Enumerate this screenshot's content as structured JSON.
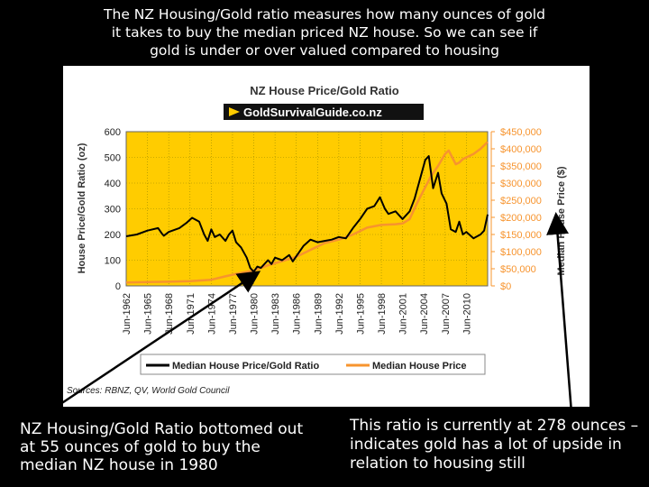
{
  "slide": {
    "intro": "The NZ Housing/Gold ratio measures how many ounces of gold it takes to buy the median priced NZ house. So we can see if gold is under or over valued compared to housing",
    "note_left": "NZ Housing/Gold Ratio bottomed out at 55 ounces of gold to buy the median NZ house in 1980",
    "note_right": "This ratio is currently at 278 ounces – indicates gold has a lot of upside in relation to housing still"
  },
  "chart_data": {
    "type": "line",
    "title": "NZ House Price/Gold Ratio",
    "logo_text": "GoldSurvivalGuide.co.nz",
    "ylabel": "House Price/Gold Ratio (oz)",
    "y2label": "Median House Price ($)",
    "ylim": [
      0,
      600
    ],
    "y2lim": [
      0,
      450000
    ],
    "y_ticks": [
      "0",
      "100",
      "200",
      "300",
      "400",
      "500",
      "600"
    ],
    "y2_ticks": [
      "$0",
      "$50,000",
      "$100,000",
      "$150,000",
      "$200,000",
      "$250,000",
      "$300,000",
      "$350,000",
      "$400,000",
      "$450,000"
    ],
    "x_ticks": [
      "Jun-1962",
      "Jun-1965",
      "Jun-1968",
      "Jun-1971",
      "Jun-1974",
      "Jun-1977",
      "Jun-1980",
      "Jun-1983",
      "Jun-1986",
      "Jun-1989",
      "Jun-1992",
      "Jun-1995",
      "Jun-1998",
      "Jun-2001",
      "Jun-2004",
      "Jun-2007",
      "Jun-2010"
    ],
    "xlim": [
      1962.0,
      2013.0
    ],
    "grid": true,
    "legend_position": "bottom",
    "sources": "Sources: RBNZ, QV, World Gold Council",
    "colors": {
      "plot_background": "#FFCC00",
      "ratio": "#000000",
      "price": "#F7942E",
      "secondary_axis": "#F7942E"
    },
    "series": [
      {
        "name": "Median House Price/Gold Ratio",
        "axis": "left",
        "x": [
          1962.0,
          1963.5,
          1965.0,
          1966.5,
          1967.0,
          1967.3,
          1968.0,
          1969.5,
          1970.5,
          1971.3,
          1972.3,
          1973.0,
          1973.5,
          1974.0,
          1974.5,
          1975.2,
          1976.0,
          1976.5,
          1977.0,
          1977.5,
          1978.2,
          1979.0,
          1979.5,
          1980.0,
          1980.5,
          1981.0,
          1982.0,
          1982.5,
          1983.0,
          1984.0,
          1985.0,
          1985.5,
          1986.0,
          1987.0,
          1988.0,
          1989.0,
          1990.0,
          1991.0,
          1992.0,
          1993.0,
          1994.0,
          1995.0,
          1996.0,
          1997.0,
          1997.8,
          1998.5,
          1999.0,
          2000.0,
          2001.0,
          2002.0,
          2002.7,
          2003.5,
          2004.2,
          2004.7,
          2005.3,
          2006.0,
          2006.5,
          2007.2,
          2007.8,
          2008.5,
          2009.0,
          2009.5,
          2010.0,
          2011.0,
          2012.0,
          2012.5,
          2013.0
        ],
        "values": [
          193,
          200,
          215,
          225,
          205,
          195,
          210,
          225,
          245,
          265,
          250,
          200,
          175,
          220,
          190,
          200,
          175,
          200,
          215,
          170,
          150,
          110,
          70,
          55,
          75,
          70,
          100,
          85,
          110,
          100,
          120,
          95,
          115,
          155,
          180,
          170,
          175,
          180,
          190,
          185,
          225,
          260,
          300,
          310,
          345,
          300,
          280,
          290,
          260,
          290,
          340,
          420,
          490,
          505,
          380,
          440,
          360,
          320,
          220,
          210,
          250,
          200,
          210,
          185,
          200,
          215,
          278
        ]
      },
      {
        "name": "Median House Price",
        "axis": "right",
        "x": [
          1962.0,
          1965.0,
          1968.0,
          1971.0,
          1974.0,
          1976.0,
          1978.0,
          1980.0,
          1982.0,
          1984.0,
          1986.0,
          1988.0,
          1990.0,
          1992.0,
          1994.0,
          1996.0,
          1998.0,
          2000.0,
          2001.0,
          2002.0,
          2003.0,
          2004.0,
          2005.0,
          2006.0,
          2007.0,
          2007.5,
          2008.0,
          2008.5,
          2009.0,
          2009.5,
          2010.0,
          2011.0,
          2012.0,
          2013.0
        ],
        "values": [
          10000,
          11000,
          12000,
          14000,
          18000,
          28000,
          37000,
          45000,
          60000,
          72000,
          85000,
          105000,
          125000,
          135000,
          150000,
          170000,
          178000,
          180000,
          182000,
          195000,
          240000,
          280000,
          320000,
          350000,
          385000,
          395000,
          375000,
          355000,
          360000,
          370000,
          375000,
          385000,
          400000,
          420000
        ]
      }
    ]
  }
}
